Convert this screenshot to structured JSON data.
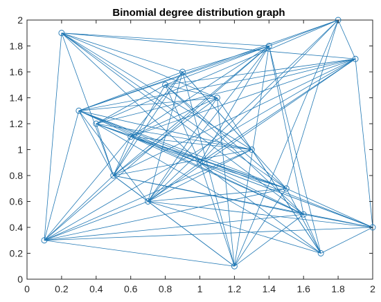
{
  "chart_data": {
    "type": "graph",
    "title": "Binomial degree distribution graph",
    "xlabel": "",
    "ylabel": "",
    "xlim": [
      0,
      2
    ],
    "ylim": [
      0,
      2
    ],
    "xticks": [
      0,
      0.2,
      0.4,
      0.6,
      0.8,
      1,
      1.2,
      1.4,
      1.6,
      1.8,
      2
    ],
    "xtick_labels": [
      "0",
      "0.2",
      "0.4",
      "0.6",
      "0.8",
      "1",
      "1.2",
      "1.4",
      "1.6",
      "1.8",
      "2"
    ],
    "yticks": [
      0,
      0.2,
      0.4,
      0.6,
      0.8,
      1,
      1.2,
      1.4,
      1.6,
      1.8,
      2
    ],
    "ytick_labels": [
      "0",
      "0.2",
      "0.4",
      "0.6",
      "0.8",
      "1",
      "1.2",
      "1.4",
      "1.6",
      "1.8",
      "2"
    ],
    "grid": false,
    "color": "#1f77b4",
    "nodes": [
      {
        "x": 0.2,
        "y": 1.9
      },
      {
        "x": 1.8,
        "y": 2.0
      },
      {
        "x": 1.4,
        "y": 1.8
      },
      {
        "x": 1.9,
        "y": 1.7
      },
      {
        "x": 0.9,
        "y": 1.6
      },
      {
        "x": 0.8,
        "y": 1.5
      },
      {
        "x": 1.1,
        "y": 1.4
      },
      {
        "x": 0.3,
        "y": 1.3
      },
      {
        "x": 0.4,
        "y": 1.2
      },
      {
        "x": 0.6,
        "y": 1.1
      },
      {
        "x": 1.3,
        "y": 1.0
      },
      {
        "x": 1.0,
        "y": 0.9
      },
      {
        "x": 0.5,
        "y": 0.8
      },
      {
        "x": 1.5,
        "y": 0.7
      },
      {
        "x": 0.7,
        "y": 0.6
      },
      {
        "x": 1.6,
        "y": 0.5
      },
      {
        "x": 2.0,
        "y": 0.4
      },
      {
        "x": 0.1,
        "y": 0.3
      },
      {
        "x": 1.7,
        "y": 0.2
      },
      {
        "x": 1.2,
        "y": 0.1
      }
    ],
    "edges": [
      [
        0,
        2
      ],
      [
        0,
        3
      ],
      [
        0,
        4
      ],
      [
        0,
        6
      ],
      [
        0,
        10
      ],
      [
        0,
        11
      ],
      [
        0,
        12
      ],
      [
        0,
        13
      ],
      [
        0,
        15
      ],
      [
        0,
        17
      ],
      [
        1,
        2
      ],
      [
        1,
        3
      ],
      [
        1,
        7
      ],
      [
        1,
        8
      ],
      [
        1,
        11
      ],
      [
        1,
        13
      ],
      [
        1,
        14
      ],
      [
        1,
        19
      ],
      [
        2,
        4
      ],
      [
        2,
        5
      ],
      [
        2,
        7
      ],
      [
        2,
        9
      ],
      [
        2,
        11
      ],
      [
        2,
        12
      ],
      [
        2,
        14
      ],
      [
        2,
        15
      ],
      [
        2,
        17
      ],
      [
        2,
        18
      ],
      [
        2,
        19
      ],
      [
        3,
        5
      ],
      [
        3,
        7
      ],
      [
        3,
        8
      ],
      [
        3,
        9
      ],
      [
        3,
        11
      ],
      [
        3,
        12
      ],
      [
        3,
        14
      ],
      [
        3,
        16
      ],
      [
        3,
        17
      ],
      [
        4,
        7
      ],
      [
        4,
        9
      ],
      [
        4,
        10
      ],
      [
        4,
        12
      ],
      [
        4,
        13
      ],
      [
        4,
        14
      ],
      [
        4,
        19
      ],
      [
        5,
        6
      ],
      [
        5,
        8
      ],
      [
        5,
        11
      ],
      [
        5,
        12
      ],
      [
        5,
        13
      ],
      [
        5,
        15
      ],
      [
        6,
        7
      ],
      [
        6,
        9
      ],
      [
        6,
        12
      ],
      [
        6,
        14
      ],
      [
        6,
        18
      ],
      [
        6,
        19
      ],
      [
        7,
        10
      ],
      [
        7,
        11
      ],
      [
        7,
        12
      ],
      [
        7,
        13
      ],
      [
        7,
        14
      ],
      [
        7,
        15
      ],
      [
        7,
        16
      ],
      [
        7,
        17
      ],
      [
        8,
        9
      ],
      [
        8,
        10
      ],
      [
        8,
        11
      ],
      [
        8,
        12
      ],
      [
        8,
        13
      ],
      [
        8,
        16
      ],
      [
        8,
        18
      ],
      [
        9,
        10
      ],
      [
        9,
        12
      ],
      [
        9,
        13
      ],
      [
        9,
        15
      ],
      [
        9,
        17
      ],
      [
        10,
        12
      ],
      [
        10,
        14
      ],
      [
        10,
        17
      ],
      [
        10,
        18
      ],
      [
        11,
        13
      ],
      [
        11,
        14
      ],
      [
        11,
        15
      ],
      [
        11,
        16
      ],
      [
        11,
        18
      ],
      [
        11,
        19
      ],
      [
        12,
        14
      ],
      [
        12,
        15
      ],
      [
        12,
        16
      ],
      [
        12,
        17
      ],
      [
        12,
        19
      ],
      [
        13,
        14
      ],
      [
        13,
        16
      ],
      [
        13,
        17
      ],
      [
        13,
        18
      ],
      [
        13,
        19
      ],
      [
        14,
        16
      ],
      [
        14,
        17
      ],
      [
        14,
        18
      ],
      [
        14,
        19
      ],
      [
        15,
        16
      ],
      [
        15,
        17
      ],
      [
        15,
        18
      ],
      [
        15,
        19
      ],
      [
        16,
        17
      ],
      [
        16,
        18
      ],
      [
        17,
        19
      ]
    ]
  }
}
